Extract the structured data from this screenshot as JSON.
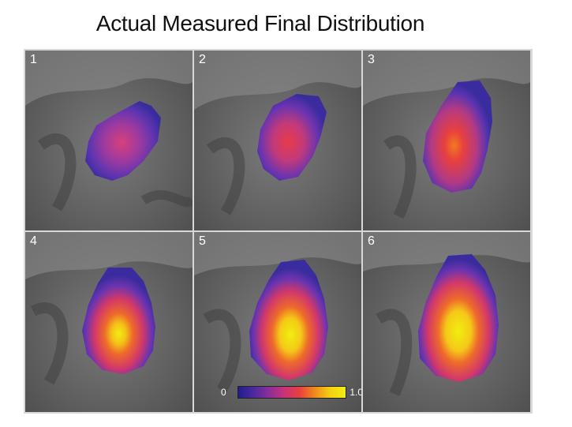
{
  "title": "Actual Measured Final Distribution",
  "panels": [
    {
      "label": "1"
    },
    {
      "label": "2"
    },
    {
      "label": "3"
    },
    {
      "label": "4"
    },
    {
      "label": "5"
    },
    {
      "label": "6"
    }
  ],
  "colorbar": {
    "min_label": "0",
    "max_label": "1.0",
    "colors": [
      "#1e1e8a",
      "#8a2e9a",
      "#e8403e",
      "#f08a1e",
      "#f2ee10"
    ]
  }
}
